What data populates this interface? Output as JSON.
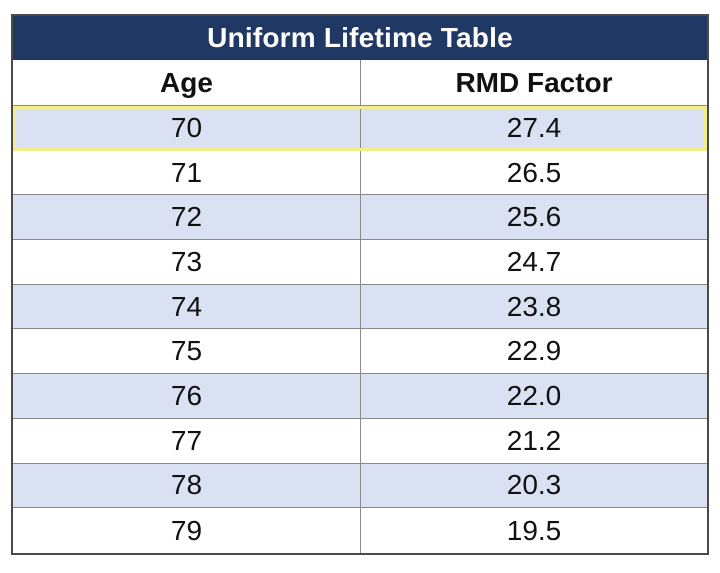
{
  "table": {
    "title": "Uniform Lifetime Table",
    "columns": [
      "Age",
      "RMD Factor"
    ],
    "rows": [
      {
        "age": "70",
        "factor": "27.4"
      },
      {
        "age": "71",
        "factor": "26.5"
      },
      {
        "age": "72",
        "factor": "25.6"
      },
      {
        "age": "73",
        "factor": "24.7"
      },
      {
        "age": "74",
        "factor": "23.8"
      },
      {
        "age": "75",
        "factor": "22.9"
      },
      {
        "age": "76",
        "factor": "22.0"
      },
      {
        "age": "77",
        "factor": "21.2"
      },
      {
        "age": "78",
        "factor": "20.3"
      },
      {
        "age": "79",
        "factor": "19.5"
      }
    ]
  },
  "colors": {
    "title_background": "#1f3864",
    "shaded_row": "#d9e1f2",
    "highlight_border": "#f2ee8c"
  }
}
